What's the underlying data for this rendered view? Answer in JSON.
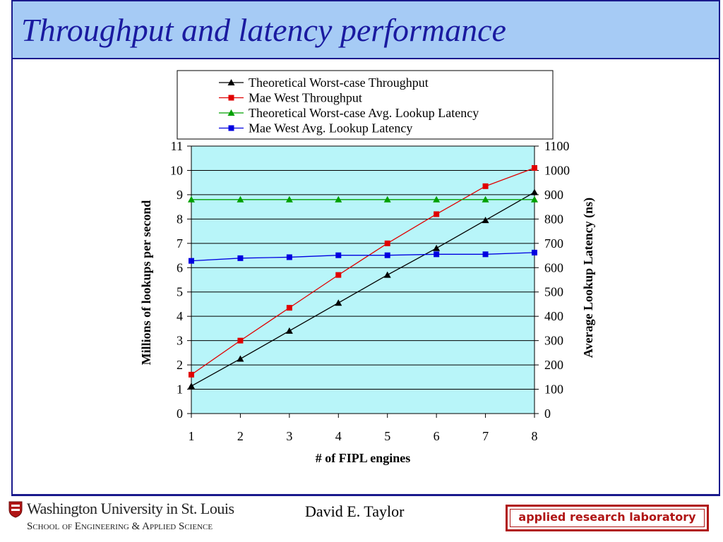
{
  "slide": {
    "title": "Throughput and latency performance",
    "author": "David E. Taylor",
    "logo_name": "Washington University in St. Louis",
    "logo_school": "School of Engineering & Applied Science",
    "lab_badge": "applied research laboratory"
  },
  "colors": {
    "title": "#1a1aa0",
    "title_bg": "#a6cbf5",
    "frame": "#1a1a8c",
    "plot_bg": "#b8f5f9",
    "theoretical_throughput": "#000000",
    "mae_west_throughput": "#e00000",
    "theoretical_latency": "#00a000",
    "mae_west_latency": "#0000e0",
    "badge": "#b01515"
  },
  "chart_data": {
    "type": "line",
    "xlabel": "# of FIPL engines",
    "ylabel_left": "Millions of lookups per second",
    "ylabel_right": "Average Lookup Latency (ns)",
    "x": [
      1,
      2,
      3,
      4,
      5,
      6,
      7,
      8
    ],
    "ylim_left": [
      0,
      11
    ],
    "ylim_right": [
      0,
      1100
    ],
    "yticks_left": [
      0,
      1,
      2,
      3,
      4,
      5,
      6,
      7,
      8,
      9,
      10,
      11
    ],
    "yticks_right": [
      0,
      100,
      200,
      300,
      400,
      500,
      600,
      700,
      800,
      900,
      1000,
      1100
    ],
    "grid": "horizontal",
    "legend_placement": "top",
    "series": [
      {
        "name": "Theoretical Worst-case Throughput",
        "axis": "left",
        "marker": "triangle",
        "color": "#000000",
        "values": [
          1.13,
          2.25,
          3.4,
          4.55,
          5.7,
          6.8,
          7.95,
          9.1
        ]
      },
      {
        "name": "Mae West Throughput",
        "axis": "left",
        "marker": "square",
        "color": "#e00000",
        "values": [
          1.6,
          3.0,
          4.35,
          5.7,
          7.0,
          8.2,
          9.35,
          10.1
        ]
      },
      {
        "name": "Theoretical Worst-case Avg. Lookup Latency",
        "axis": "right",
        "marker": "triangle",
        "color": "#00a000",
        "values": [
          880,
          880,
          880,
          880,
          880,
          880,
          880,
          880
        ]
      },
      {
        "name": "Mae West Avg. Lookup Latency",
        "axis": "right",
        "marker": "square",
        "color": "#0000e0",
        "values": [
          628,
          639,
          643,
          651,
          651,
          655,
          655,
          662
        ]
      }
    ]
  }
}
